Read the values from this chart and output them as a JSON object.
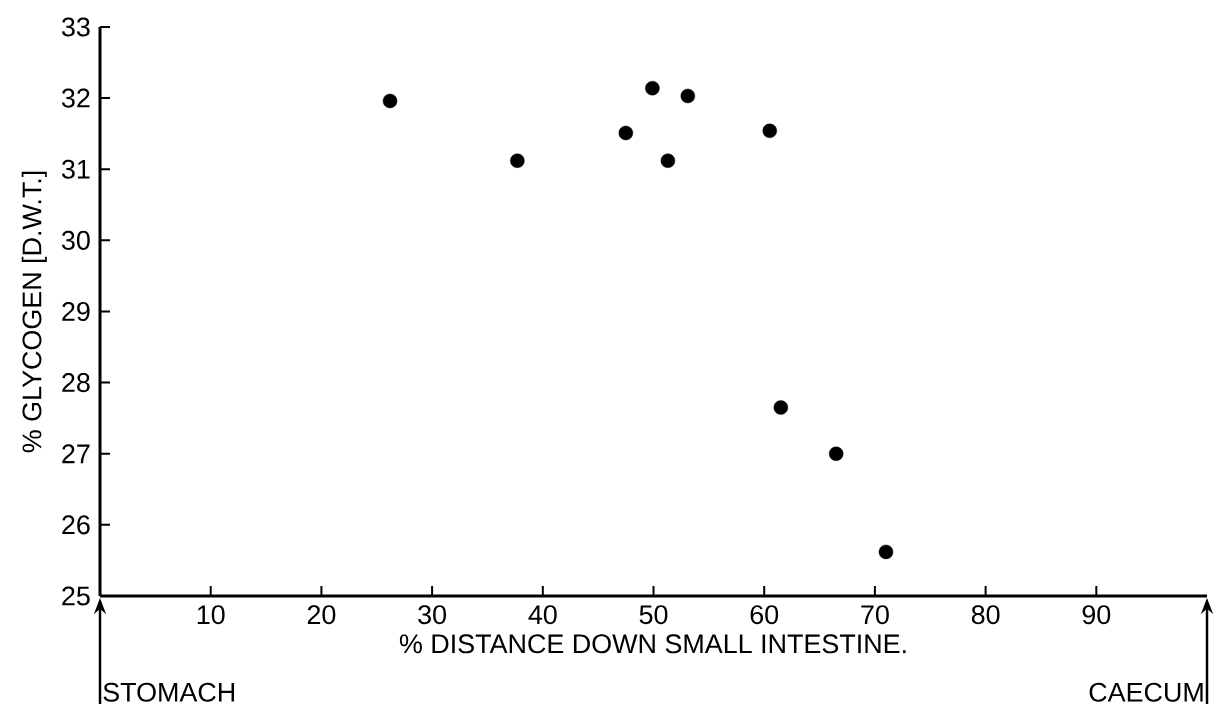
{
  "chart_data": {
    "type": "scatter",
    "xlabel": "% DISTANCE DOWN SMALL INTESTINE.",
    "ylabel": "% GLYCOGEN [D.W.T.]",
    "x": [
      26.2,
      37.7,
      47.5,
      49.9,
      51.3,
      53.1,
      60.5,
      61.5,
      66.5,
      71.0
    ],
    "values": [
      31.96,
      31.12,
      31.51,
      32.14,
      31.12,
      32.03,
      31.54,
      27.65,
      27.0,
      25.62
    ],
    "color": "#000000",
    "marker": "circle",
    "xlim": [
      0,
      100
    ],
    "ylim": [
      25,
      33
    ],
    "xticks": [
      10,
      20,
      30,
      40,
      50,
      60,
      70,
      80,
      90
    ],
    "yticks": [
      25,
      26,
      27,
      28,
      29,
      30,
      31,
      32,
      33
    ],
    "annotations": [
      "STOMACH",
      "CAECUM"
    ],
    "grid": false
  }
}
